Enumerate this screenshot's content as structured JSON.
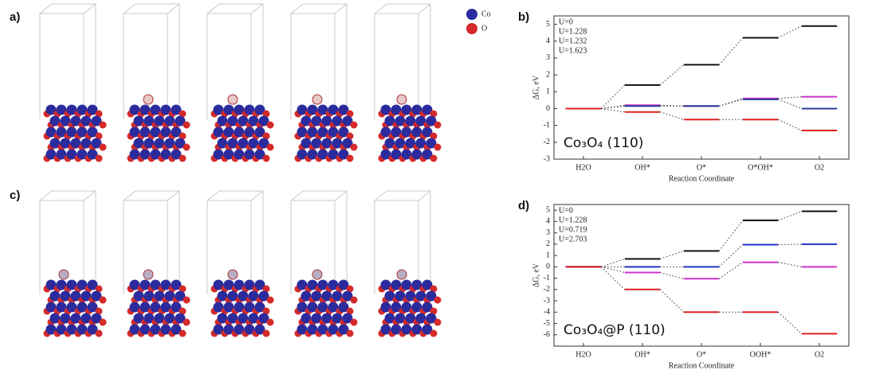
{
  "structure_panels": [
    "a)",
    "c)"
  ],
  "structure_legend": [
    "Co",
    "O"
  ],
  "chart_data": [
    {
      "type": "energy-levels",
      "label": "b)",
      "annotation": "Co₃O₄ (110)",
      "xlabel": "Reaction Coordinate",
      "ylabel": "ΔG, eV",
      "categories": [
        "H2O",
        "OH*",
        "O*",
        "O*OH*",
        "O2"
      ],
      "ylim": [
        -3,
        5.5
      ],
      "yticks": [
        -3,
        -2,
        -1,
        0,
        1,
        2,
        3,
        4,
        5
      ],
      "series": [
        {
          "name": "U=0",
          "color": "#111111",
          "values": [
            0,
            1.4,
            2.6,
            4.2,
            4.9
          ]
        },
        {
          "name": "U=1.228",
          "color": "#cc33cc",
          "values": [
            0,
            0.2,
            0.15,
            0.6,
            0.7
          ]
        },
        {
          "name": "U=1.232",
          "color": "#2a3a9a",
          "values": [
            0,
            0.15,
            0.15,
            0.55,
            0
          ]
        },
        {
          "name": "U=1.623",
          "color": "#dd2222",
          "values": [
            0,
            -0.2,
            -0.65,
            -0.65,
            -1.3
          ]
        }
      ]
    },
    {
      "type": "energy-levels",
      "label": "d)",
      "annotation": "Co₃O₄@P (110)",
      "xlabel": "Reaction Coordinate",
      "ylabel": "ΔG, eV",
      "categories": [
        "H2O",
        "OH*",
        "O*",
        "OOH*",
        "O2"
      ],
      "ylim": [
        -7,
        5.5
      ],
      "yticks": [
        -6,
        -5,
        -4,
        -3,
        -2,
        -1,
        0,
        1,
        2,
        3,
        4,
        5
      ],
      "series": [
        {
          "name": "U=0",
          "color": "#111111",
          "values": [
            0,
            0.7,
            1.4,
            4.1,
            4.9
          ]
        },
        {
          "name": "U=1.228",
          "color": "#cc33cc",
          "values": [
            0,
            -0.5,
            -1.05,
            0.4,
            0
          ]
        },
        {
          "name": "U=0.719",
          "color": "#2233cc",
          "values": [
            0,
            0,
            0,
            1.95,
            2
          ]
        },
        {
          "name": "U=2.703",
          "color": "#dd2222",
          "values": [
            0,
            -2,
            -4,
            -4,
            -5.9
          ]
        }
      ]
    }
  ]
}
